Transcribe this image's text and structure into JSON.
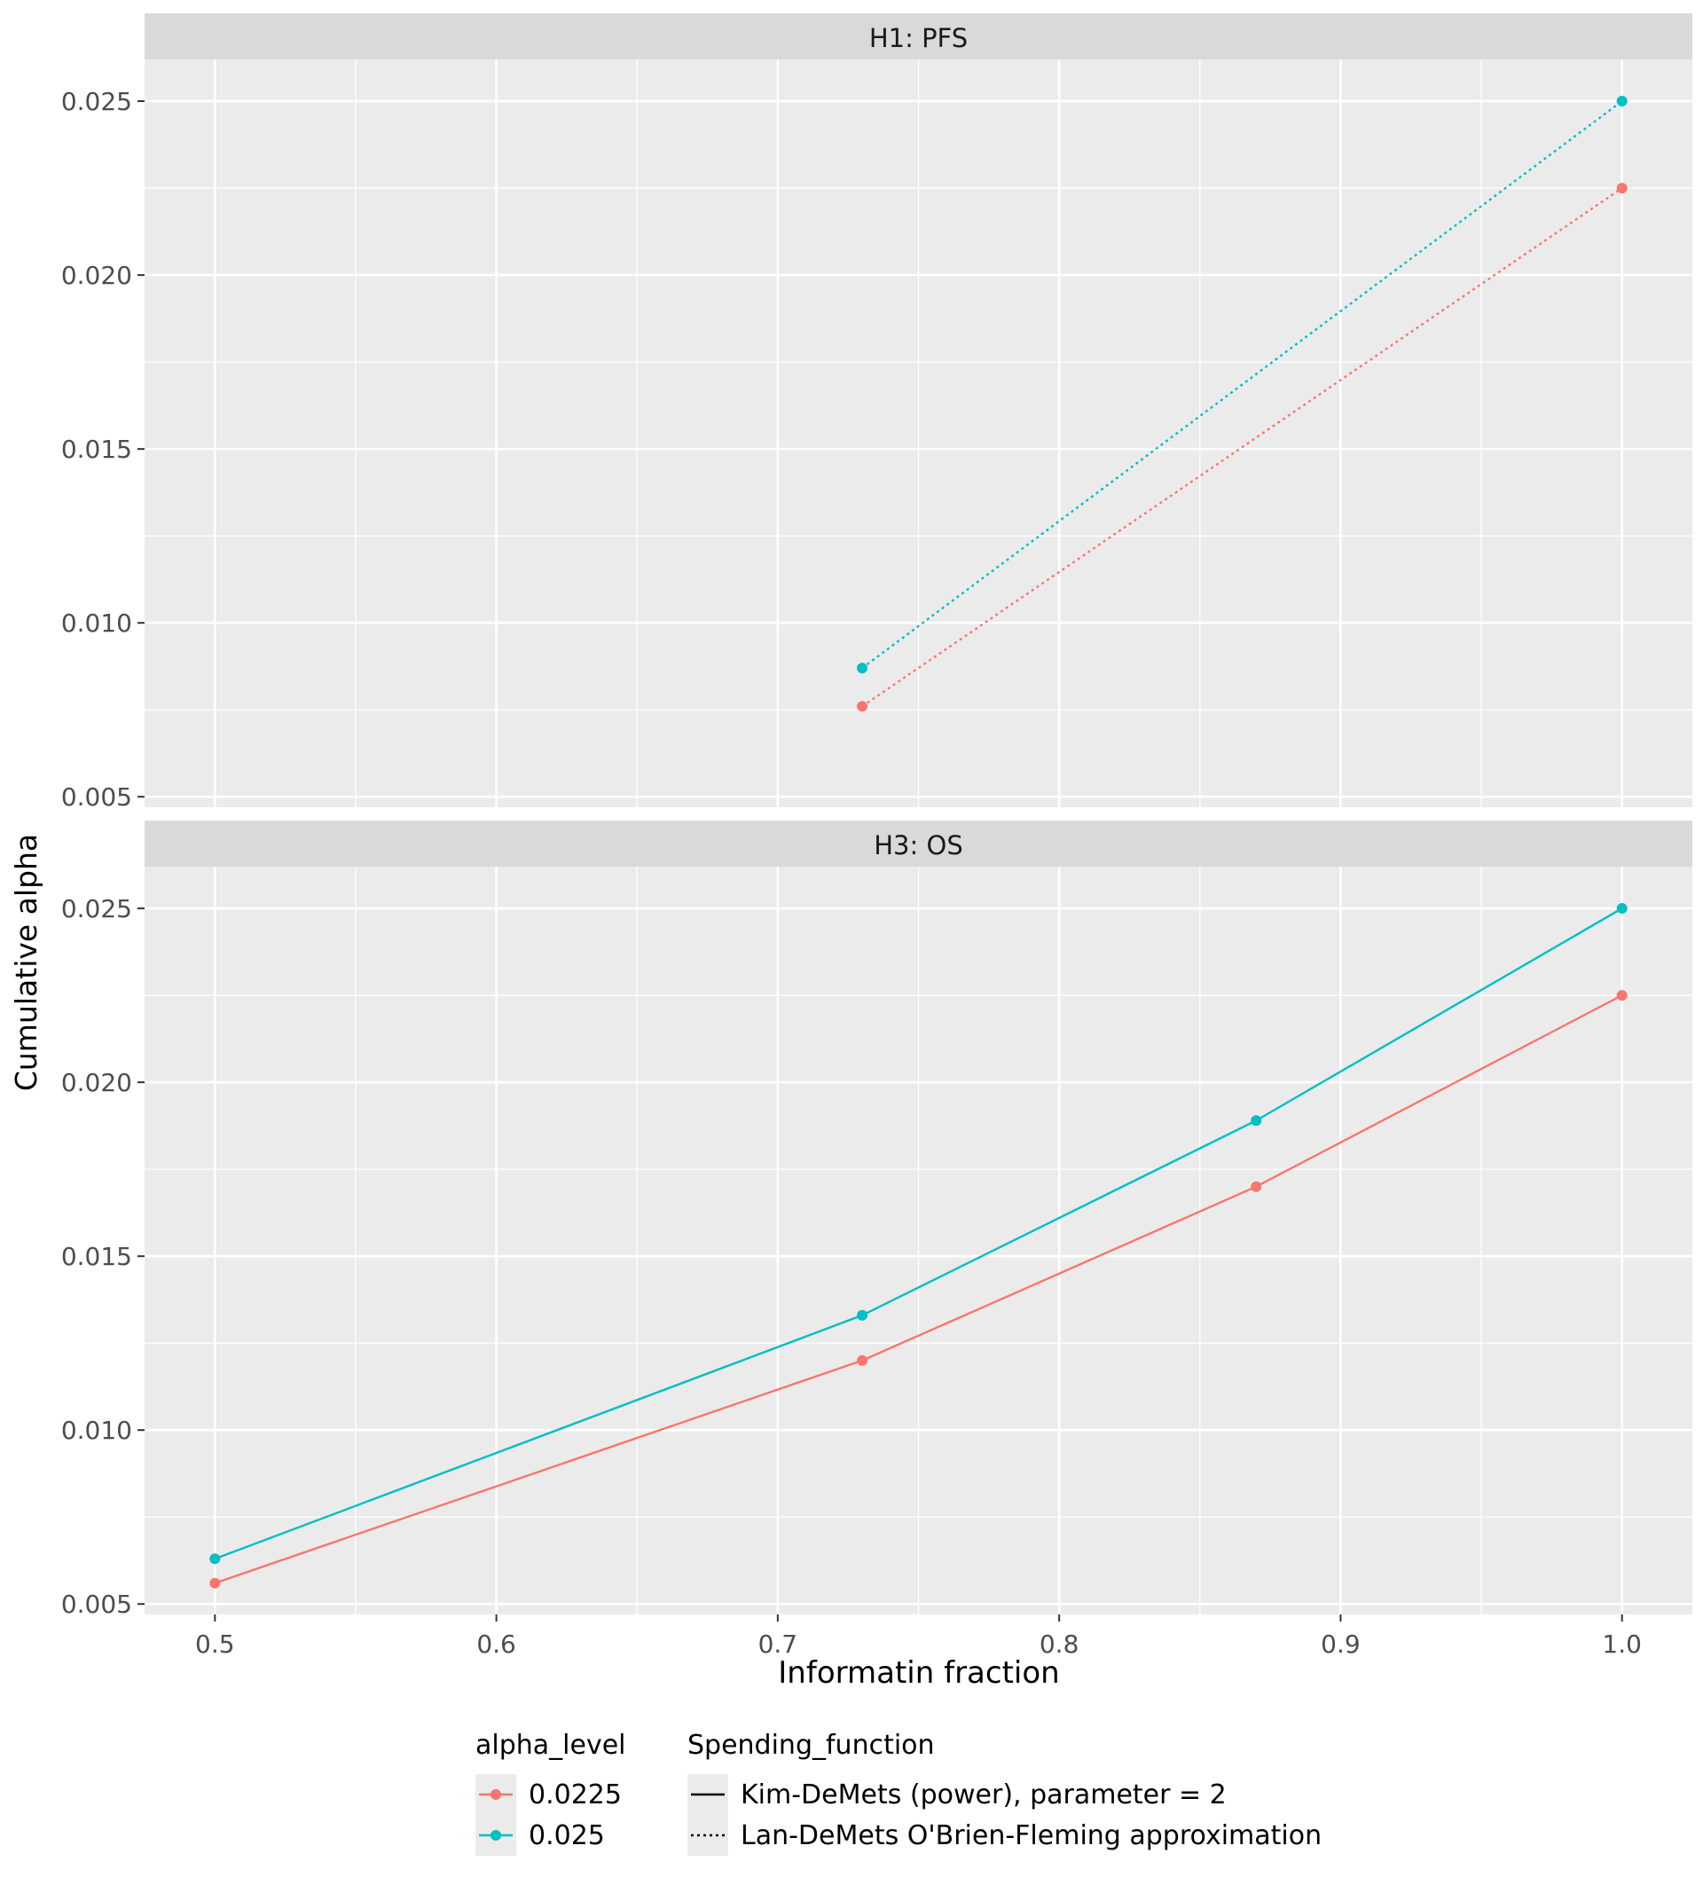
{
  "chart_data": {
    "type": "line",
    "xlabel": "Informatin fraction",
    "ylabel": "Cumulative alpha",
    "xlim": [
      0.475,
      1.025
    ],
    "x_ticks": [
      0.5,
      0.6,
      0.7,
      0.8,
      0.9,
      1.0
    ],
    "x_tick_labels": [
      "0.5",
      "0.6",
      "0.7",
      "0.8",
      "0.9",
      "1.0"
    ],
    "y_ticks": [
      0.005,
      0.01,
      0.015,
      0.02,
      0.025
    ],
    "y_tick_labels": [
      "0.005",
      "0.010",
      "0.015",
      "0.020",
      "0.025"
    ],
    "grid": true,
    "legend_position": "bottom",
    "colors": {
      "0.0225": "#F8766D",
      "0.025": "#00BFC4"
    },
    "panels": [
      {
        "strip": "H1: PFS",
        "ylim": [
          0.0047,
          0.0262
        ],
        "series": [
          {
            "alpha_level": "0.0225",
            "spending_function": "Lan-DeMets O'Brien-Fleming approximation",
            "linetype": "dotted",
            "x": [
              0.73,
              1.0
            ],
            "y": [
              0.0076,
              0.0225
            ]
          },
          {
            "alpha_level": "0.025",
            "spending_function": "Lan-DeMets O'Brien-Fleming approximation",
            "linetype": "dotted",
            "x": [
              0.73,
              1.0
            ],
            "y": [
              0.0087,
              0.025
            ]
          }
        ]
      },
      {
        "strip": "H3: OS",
        "ylim": [
          0.0047,
          0.0262
        ],
        "series": [
          {
            "alpha_level": "0.0225",
            "spending_function": "Kim-DeMets (power), parameter = 2",
            "linetype": "solid",
            "x": [
              0.5,
              0.73,
              0.87,
              1.0
            ],
            "y": [
              0.0056,
              0.012,
              0.017,
              0.0225
            ]
          },
          {
            "alpha_level": "0.025",
            "spending_function": "Kim-DeMets (power), parameter = 2",
            "linetype": "solid",
            "x": [
              0.5,
              0.73,
              0.87,
              1.0
            ],
            "y": [
              0.0063,
              0.0133,
              0.0189,
              0.025
            ]
          }
        ]
      }
    ],
    "legend": {
      "color_title": "alpha_level",
      "color_items": [
        "0.0225",
        "0.025"
      ],
      "linetype_title": "Spending_function",
      "linetype_items": [
        {
          "label": "Kim-DeMets (power), parameter = 2",
          "linetype": "solid"
        },
        {
          "label": "Lan-DeMets O'Brien-Fleming approximation",
          "linetype": "dotted"
        }
      ]
    }
  }
}
